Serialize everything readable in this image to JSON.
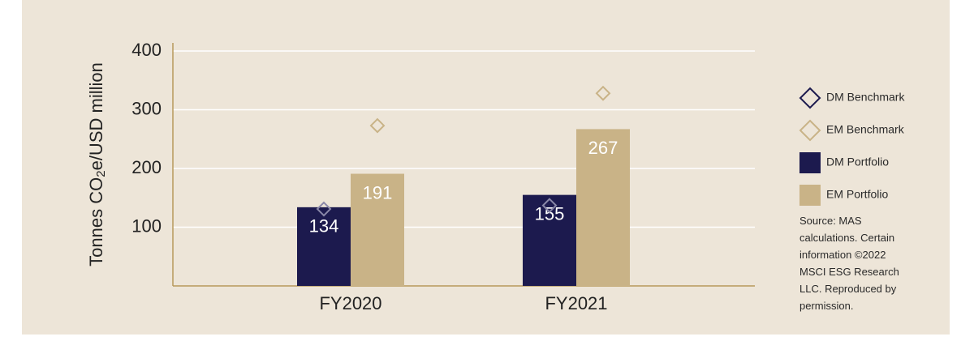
{
  "chart_data": {
    "type": "bar",
    "y_label": [
      "Tonnes CO",
      "2",
      "e/USD million"
    ],
    "categories": [
      "FY2020",
      "FY2021"
    ],
    "series": [
      {
        "name": "DM Benchmark",
        "color": "#1c1a4e",
        "marker": "diamond",
        "group": 0,
        "values": [
          131,
          137
        ]
      },
      {
        "name": "EM Benchmark",
        "color": "#c9b387",
        "marker": "diamond",
        "group": 1,
        "values": [
          273,
          328
        ]
      },
      {
        "name": "DM Portfolio",
        "color": "#1c1a4e",
        "marker": "bar",
        "group": 0,
        "values": [
          134,
          155
        ]
      },
      {
        "name": "EM Portfolio",
        "color": "#c9b387",
        "marker": "bar",
        "group": 1,
        "values": [
          191,
          267
        ]
      }
    ],
    "ylim": [
      0,
      400
    ],
    "yticks": [
      100,
      200,
      300,
      400
    ],
    "grid": true,
    "source": "Source: MAS calculations. Certain information ©2022 MSCI ESG Research LLC. Reproduced by permission."
  }
}
